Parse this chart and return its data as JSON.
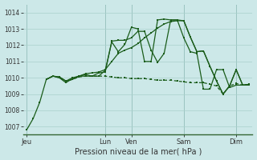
{
  "xlabel": "Pression niveau de la mer( hPa )",
  "background_color": "#cce8e8",
  "grid_color": "#aad0cc",
  "line_color": "#1a5c1a",
  "ylim": [
    1006.5,
    1014.5
  ],
  "yticks": [
    1007,
    1008,
    1009,
    1010,
    1011,
    1012,
    1013,
    1014
  ],
  "xtick_labels": [
    "Jeu",
    "Lun",
    "Ven",
    "Sam",
    "Dim"
  ],
  "xtick_positions": [
    0,
    12,
    16,
    24,
    32
  ],
  "vline_positions": [
    0,
    12,
    16,
    24,
    32
  ],
  "num_points": 35,
  "series1": [
    1006.8,
    1007.5,
    1008.5,
    1009.9,
    1010.1,
    1010.05,
    1009.8,
    1010.0,
    1010.1,
    1010.2,
    1010.1,
    1010.3,
    1010.35,
    1012.25,
    1012.3,
    1012.3,
    1012.45,
    1012.85,
    1012.85,
    1011.7,
    1010.95,
    1011.5,
    1013.55,
    1013.55,
    1013.5,
    1012.5,
    1011.6,
    1011.65,
    1010.7,
    1009.8,
    1009.0,
    1009.5,
    1010.5,
    1009.55,
    1009.6
  ],
  "series2": [
    null,
    null,
    null,
    1009.9,
    1010.1,
    1010.05,
    1009.8,
    1009.9,
    1010.1,
    1010.25,
    1010.3,
    1010.35,
    1010.5,
    1011.0,
    1011.5,
    1011.7,
    1011.85,
    1012.1,
    1012.45,
    1012.75,
    1013.05,
    1013.3,
    1013.45,
    1013.5,
    1013.5,
    1012.5,
    1011.6,
    1011.65,
    1010.7,
    1009.8,
    1009.0,
    1009.5,
    1010.5,
    1009.55,
    1009.6
  ],
  "series3": [
    null,
    null,
    null,
    1009.9,
    1010.1,
    1010.0,
    1009.8,
    1009.9,
    1010.05,
    1010.1,
    1010.1,
    1010.1,
    1010.1,
    1010.05,
    1010.0,
    1010.0,
    1009.95,
    1009.95,
    1009.95,
    1009.9,
    1009.85,
    1009.85,
    1009.85,
    1009.8,
    1009.75,
    1009.7,
    1009.7,
    1009.7,
    1009.6,
    1009.5,
    1009.0,
    1009.5,
    1009.65,
    1009.55,
    1009.6
  ],
  "series4": [
    null,
    null,
    null,
    1009.9,
    1010.1,
    1010.0,
    1009.7,
    1009.95,
    1010.1,
    1010.1,
    1010.1,
    1010.1,
    1010.45,
    1012.2,
    1011.6,
    1012.05,
    1013.1,
    1013.0,
    1011.0,
    1011.0,
    1013.55,
    1013.6,
    1013.55,
    1013.55,
    1012.45,
    1011.6,
    1011.5,
    1009.3,
    1009.3,
    1010.5,
    1010.5,
    1009.4,
    1009.55,
    1009.55,
    1009.55
  ]
}
